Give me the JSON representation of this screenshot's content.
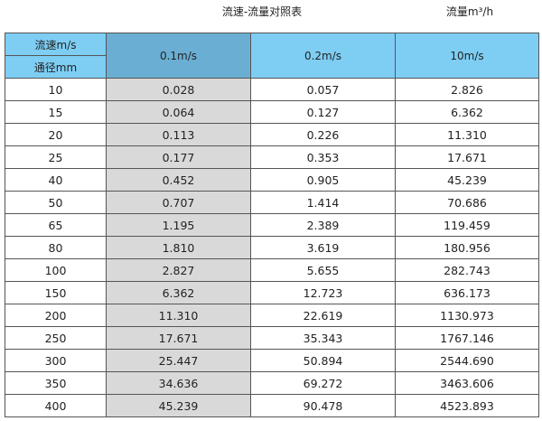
{
  "title": "流速-流量对照表",
  "unit": "流量m³/h",
  "header": {
    "velocity_label": "流速m/s",
    "diameter_label": "通径mm",
    "columns": [
      "0.1m/s",
      "0.2m/s",
      "10m/s"
    ]
  },
  "colors": {
    "header": "#7ecef4",
    "highlight_header": "#6aafd3",
    "highlight_column": "#d9d9d9"
  },
  "rows": [
    [
      "10",
      "0.028",
      "0.057",
      "2.826"
    ],
    [
      "15",
      "0.064",
      "0.127",
      "6.362"
    ],
    [
      "20",
      "0.113",
      "0.226",
      "11.310"
    ],
    [
      "25",
      "0.177",
      "0.353",
      "17.671"
    ],
    [
      "40",
      "0.452",
      "0.905",
      "45.239"
    ],
    [
      "50",
      "0.707",
      "1.414",
      "70.686"
    ],
    [
      "65",
      "1.195",
      "2.389",
      "119.459"
    ],
    [
      "80",
      "1.810",
      "3.619",
      "180.956"
    ],
    [
      "100",
      "2.827",
      "5.655",
      "282.743"
    ],
    [
      "150",
      "6.362",
      "12.723",
      "636.173"
    ],
    [
      "200",
      "11.310",
      "22.619",
      "1130.973"
    ],
    [
      "250",
      "17.671",
      "35.343",
      "1767.146"
    ],
    [
      "300",
      "25.447",
      "50.894",
      "2544.690"
    ],
    [
      "350",
      "34.636",
      "69.272",
      "3463.606"
    ],
    [
      "400",
      "45.239",
      "90.478",
      "4523.893"
    ]
  ]
}
